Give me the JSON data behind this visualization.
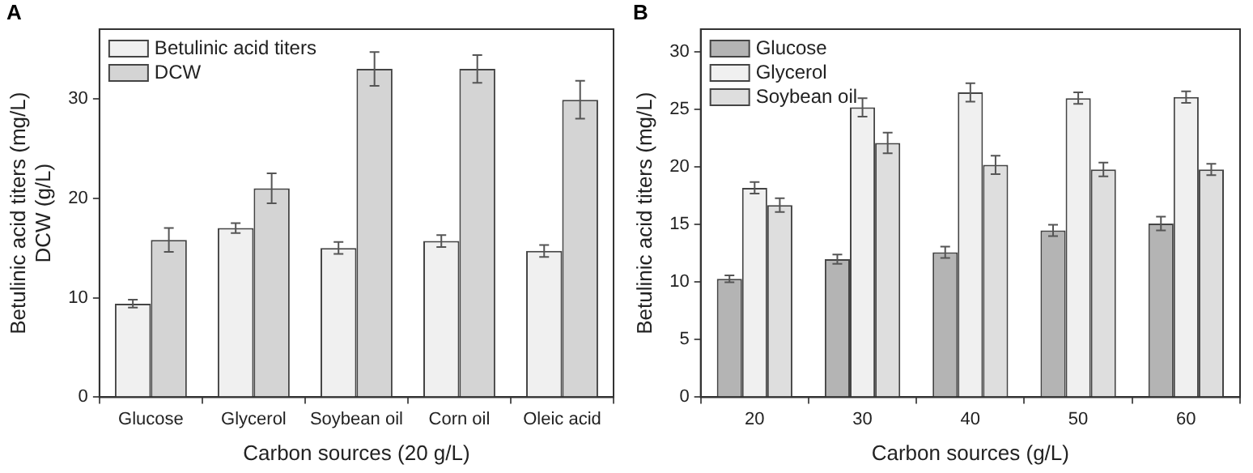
{
  "chart_data": [
    {
      "type": "bar",
      "annotations": [
        "A"
      ],
      "xlabel": "Carbon sources (20 g/L)",
      "ylabel": "Betulinic acid titers (mg/L)\nDCW (g/L)",
      "categories": [
        "Glucose",
        "Glycerol",
        "Soybean oil",
        "Corn oil",
        "Oleic acid"
      ],
      "series": [
        {
          "name": "Betulinic acid titers",
          "color": "#f0f0f0",
          "values": [
            9.4,
            17.0,
            15.0,
            15.7,
            14.7
          ],
          "errors": [
            0.4,
            0.5,
            0.6,
            0.6,
            0.6
          ]
        },
        {
          "name": "DCW",
          "color": "#d4d4d4",
          "values": [
            15.8,
            21.0,
            33.0,
            33.0,
            29.9
          ],
          "errors": [
            1.2,
            1.5,
            1.7,
            1.4,
            1.9
          ]
        }
      ],
      "ylim": [
        0,
        37
      ],
      "yticks": [
        0,
        10,
        20,
        30
      ],
      "grid": false,
      "legend": "top left"
    },
    {
      "type": "bar",
      "annotations": [
        "B"
      ],
      "xlabel": "Carbon sources (g/L)",
      "ylabel": "Betulinic acid titers (mg/L)",
      "categories": [
        "20",
        "30",
        "40",
        "50",
        "60"
      ],
      "series": [
        {
          "name": "Glucose",
          "color": "#b4b4b4",
          "values": [
            10.3,
            12.0,
            12.6,
            14.5,
            15.1
          ],
          "errors": [
            0.3,
            0.4,
            0.5,
            0.5,
            0.6
          ]
        },
        {
          "name": "Glycerol",
          "color": "#f0f0f0",
          "values": [
            18.2,
            25.2,
            26.5,
            26.0,
            26.1
          ],
          "errors": [
            0.5,
            0.8,
            0.8,
            0.5,
            0.5
          ]
        },
        {
          "name": "Soybean oil",
          "color": "#dedede",
          "values": [
            16.7,
            22.1,
            20.2,
            19.8,
            19.8
          ],
          "errors": [
            0.6,
            0.9,
            0.8,
            0.6,
            0.5
          ]
        }
      ],
      "ylim": [
        0,
        32
      ],
      "yticks": [
        0,
        5,
        10,
        15,
        20,
        25,
        30
      ],
      "grid": false,
      "legend": "top left"
    }
  ]
}
